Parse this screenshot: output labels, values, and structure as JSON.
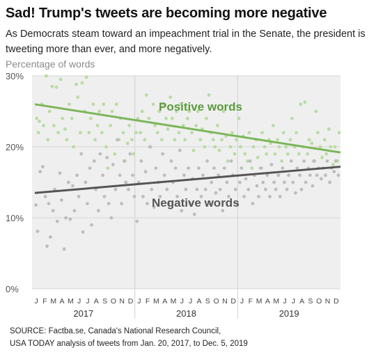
{
  "header": {
    "title": "Sad! Trump's tweets are becoming more negative",
    "subtitle": "As Democrats steam toward an impeachment trial in the Senate, the president is tweeting more than ever, and more negatively."
  },
  "footer": {
    "source_line1": "SOURCE: Factba.se, Canada's National Research Council,",
    "source_line2": "USA TODAY analysis of tweets from Jan. 20, 2017, to Dec. 5, 2019"
  },
  "colors": {
    "positive": "#7cb65a",
    "positive_label": "#5b9a3c",
    "positive_dot": "#b9dca2",
    "negative": "#555555",
    "negative_dot": "#bdbdbd",
    "plot_bg": "#efefef"
  },
  "chart_data": {
    "type": "scatter",
    "ylabel": "Percentage of words",
    "xlabel": "",
    "ylim": [
      0,
      30
    ],
    "yticks": [
      "0%",
      "10%",
      "20%",
      "30%"
    ],
    "grid": true,
    "month_labels": [
      "J",
      "F",
      "M",
      "A",
      "M",
      "J",
      "J",
      "A",
      "S",
      "O",
      "N",
      "D",
      "J",
      "F",
      "M",
      "A",
      "M",
      "J",
      "J",
      "A",
      "S",
      "O",
      "N",
      "D",
      "J",
      "F",
      "M",
      "A",
      "M",
      "J",
      "J",
      "A",
      "S",
      "O",
      "N",
      "D"
    ],
    "year_labels": [
      "2017",
      "2018",
      "2019"
    ],
    "annotations": [
      "Positive words",
      "Negative words"
    ],
    "x_range_months": [
      0,
      35.5
    ],
    "trend_lines": [
      {
        "name": "Positive words",
        "start": 26.0,
        "end": 19.2
      },
      {
        "name": "Negative words",
        "start": 13.5,
        "end": 17.2
      }
    ],
    "series": [
      {
        "name": "Positive words",
        "points": [
          [
            0.2,
            24
          ],
          [
            0.4,
            22
          ],
          [
            0.5,
            23.6
          ],
          [
            0.8,
            26
          ],
          [
            1.0,
            23
          ],
          [
            1.3,
            30
          ],
          [
            1.5,
            21
          ],
          [
            1.7,
            25
          ],
          [
            2.0,
            28.5
          ],
          [
            2.2,
            23
          ],
          [
            2.5,
            28.4
          ],
          [
            2.7,
            22
          ],
          [
            3.0,
            29.5
          ],
          [
            3.2,
            24
          ],
          [
            3.5,
            22.5
          ],
          [
            3.7,
            21
          ],
          [
            4.0,
            26
          ],
          [
            4.3,
            24
          ],
          [
            4.5,
            20
          ],
          [
            4.8,
            28.8
          ],
          [
            5.0,
            27
          ],
          [
            5.3,
            22
          ],
          [
            5.5,
            29
          ],
          [
            5.8,
            25
          ],
          [
            6.0,
            29.8
          ],
          [
            6.3,
            22
          ],
          [
            6.5,
            24
          ],
          [
            6.8,
            26
          ],
          [
            7.0,
            21
          ],
          [
            7.3,
            23
          ],
          [
            7.5,
            25
          ],
          [
            7.8,
            22
          ],
          [
            8.0,
            26
          ],
          [
            8.3,
            20
          ],
          [
            8.5,
            17
          ],
          [
            8.8,
            23
          ],
          [
            9.0,
            25
          ],
          [
            9.3,
            19
          ],
          [
            9.5,
            26
          ],
          [
            9.8,
            21
          ],
          [
            10.0,
            24
          ],
          [
            10.3,
            22
          ],
          [
            10.5,
            18
          ],
          [
            10.8,
            20.5
          ],
          [
            11.0,
            23
          ],
          [
            11.3,
            21
          ],
          [
            11.5,
            19
          ],
          [
            11.8,
            22
          ],
          [
            12.0,
            24
          ],
          [
            12.3,
            22
          ],
          [
            12.5,
            25
          ],
          [
            12.8,
            21
          ],
          [
            13.0,
            27.3
          ],
          [
            13.3,
            24
          ],
          [
            13.5,
            20
          ],
          [
            13.8,
            26
          ],
          [
            14.0,
            23
          ],
          [
            14.3,
            22
          ],
          [
            14.5,
            25
          ],
          [
            14.8,
            21
          ],
          [
            15.0,
            26
          ],
          [
            15.3,
            24
          ],
          [
            15.5,
            22.5
          ],
          [
            15.8,
            27
          ],
          [
            16.0,
            24
          ],
          [
            16.3,
            21
          ],
          [
            16.5,
            25
          ],
          [
            16.8,
            22
          ],
          [
            17.0,
            26
          ],
          [
            17.3,
            23
          ],
          [
            17.5,
            21
          ],
          [
            17.8,
            24
          ],
          [
            18.0,
            25
          ],
          [
            18.3,
            22
          ],
          [
            18.5,
            19.5
          ],
          [
            18.8,
            23
          ],
          [
            19.0,
            25
          ],
          [
            19.3,
            21
          ],
          [
            19.5,
            22.5
          ],
          [
            19.8,
            20
          ],
          [
            20.0,
            24
          ],
          [
            20.3,
            27.3
          ],
          [
            20.5,
            22
          ],
          [
            20.8,
            21
          ],
          [
            21.0,
            20
          ],
          [
            21.3,
            23
          ],
          [
            21.5,
            19.5
          ],
          [
            21.8,
            21
          ],
          [
            22.0,
            25
          ],
          [
            22.3,
            21.5
          ],
          [
            22.5,
            18
          ],
          [
            22.8,
            20
          ],
          [
            23.0,
            22
          ],
          [
            23.3,
            19
          ],
          [
            23.5,
            21
          ],
          [
            23.8,
            24
          ],
          [
            24.0,
            20
          ],
          [
            24.3,
            21.5
          ],
          [
            24.5,
            19
          ],
          [
            24.8,
            18
          ],
          [
            25.0,
            22
          ],
          [
            25.3,
            17
          ],
          [
            25.5,
            20
          ],
          [
            25.8,
            21
          ],
          [
            26.0,
            18.5
          ],
          [
            26.3,
            17
          ],
          [
            26.5,
            22
          ],
          [
            26.8,
            20
          ],
          [
            27.0,
            19
          ],
          [
            27.3,
            21
          ],
          [
            27.5,
            20.5
          ],
          [
            27.8,
            23
          ],
          [
            28.0,
            19
          ],
          [
            28.3,
            21
          ],
          [
            28.5,
            20
          ],
          [
            28.8,
            18
          ],
          [
            29.0,
            22
          ],
          [
            29.3,
            20
          ],
          [
            29.5,
            19
          ],
          [
            29.8,
            21
          ],
          [
            30.0,
            24
          ],
          [
            30.3,
            20
          ],
          [
            30.5,
            22
          ],
          [
            30.8,
            19
          ],
          [
            31.0,
            26
          ],
          [
            31.3,
            20
          ],
          [
            31.5,
            26.3
          ],
          [
            31.8,
            19
          ],
          [
            32.0,
            21
          ],
          [
            32.3,
            20.5
          ],
          [
            32.5,
            18
          ],
          [
            32.8,
            25
          ],
          [
            33.0,
            22
          ],
          [
            33.3,
            20
          ],
          [
            33.5,
            18.5
          ],
          [
            33.8,
            21
          ],
          [
            34.0,
            19
          ],
          [
            34.3,
            22.5
          ],
          [
            34.5,
            20
          ],
          [
            34.8,
            17.5
          ],
          [
            35.0,
            20
          ],
          [
            35.3,
            18
          ],
          [
            35.5,
            22
          ]
        ]
      },
      {
        "name": "Negative words",
        "points": [
          [
            0.1,
            11.8
          ],
          [
            0.3,
            8.1
          ],
          [
            0.6,
            16.5
          ],
          [
            0.9,
            17.2
          ],
          [
            1.2,
            13
          ],
          [
            1.4,
            6
          ],
          [
            1.6,
            12
          ],
          [
            1.8,
            7.3
          ],
          [
            2.1,
            11
          ],
          [
            2.3,
            14
          ],
          [
            2.6,
            9.5
          ],
          [
            2.9,
            16.3
          ],
          [
            3.1,
            12.5
          ],
          [
            3.4,
            5.6
          ],
          [
            3.6,
            10
          ],
          [
            3.9,
            15
          ],
          [
            4.1,
            9.8
          ],
          [
            4.4,
            14.5
          ],
          [
            4.6,
            11
          ],
          [
            4.9,
            16
          ],
          [
            5.1,
            13
          ],
          [
            5.4,
            19
          ],
          [
            5.6,
            8
          ],
          [
            5.9,
            15
          ],
          [
            6.1,
            12
          ],
          [
            6.4,
            17
          ],
          [
            6.6,
            9
          ],
          [
            6.9,
            18
          ],
          [
            7.1,
            14
          ],
          [
            7.4,
            11
          ],
          [
            7.6,
            19
          ],
          [
            7.9,
            16
          ],
          [
            8.1,
            13
          ],
          [
            8.4,
            18.5
          ],
          [
            8.6,
            12
          ],
          [
            8.9,
            10
          ],
          [
            9.1,
            17.5
          ],
          [
            9.4,
            14
          ],
          [
            9.6,
            21
          ],
          [
            9.9,
            16
          ],
          [
            10.1,
            12
          ],
          [
            10.4,
            18
          ],
          [
            10.6,
            15
          ],
          [
            10.9,
            14
          ],
          [
            11.1,
            19
          ],
          [
            11.4,
            16
          ],
          [
            11.6,
            13
          ],
          [
            11.9,
            9.5
          ],
          [
            12.1,
            15
          ],
          [
            12.4,
            18
          ],
          [
            12.6,
            13
          ],
          [
            12.9,
            16.5
          ],
          [
            13.1,
            12
          ],
          [
            13.4,
            20
          ],
          [
            13.6,
            14
          ],
          [
            13.9,
            11.5
          ],
          [
            14.1,
            17
          ],
          [
            14.4,
            15
          ],
          [
            14.6,
            13
          ],
          [
            14.9,
            19
          ],
          [
            15.1,
            16
          ],
          [
            15.4,
            14
          ],
          [
            15.6,
            12
          ],
          [
            15.9,
            18
          ],
          [
            16.1,
            15
          ],
          [
            16.4,
            17
          ],
          [
            16.6,
            13
          ],
          [
            16.9,
            19.5
          ],
          [
            17.1,
            11
          ],
          [
            17.4,
            16
          ],
          [
            17.6,
            14
          ],
          [
            17.9,
            17
          ],
          [
            18.1,
            12
          ],
          [
            18.4,
            15.5
          ],
          [
            18.6,
            10.5
          ],
          [
            18.9,
            14
          ],
          [
            19.1,
            17
          ],
          [
            19.4,
            13
          ],
          [
            19.6,
            16
          ],
          [
            19.9,
            14
          ],
          [
            20.1,
            18
          ],
          [
            20.4,
            12
          ],
          [
            20.6,
            15
          ],
          [
            20.9,
            17
          ],
          [
            21.1,
            13.5
          ],
          [
            21.4,
            16
          ],
          [
            21.6,
            14
          ],
          [
            21.9,
            11
          ],
          [
            22.1,
            17
          ],
          [
            22.4,
            15
          ],
          [
            22.6,
            13
          ],
          [
            22.9,
            18
          ],
          [
            23.1,
            16
          ],
          [
            23.4,
            14
          ],
          [
            23.6,
            12
          ],
          [
            23.9,
            15
          ],
          [
            24.1,
            17
          ],
          [
            24.4,
            13
          ],
          [
            24.6,
            15.5
          ],
          [
            24.9,
            14
          ],
          [
            25.1,
            18
          ],
          [
            25.4,
            12
          ],
          [
            25.6,
            16
          ],
          [
            25.9,
            14.5
          ],
          [
            26.1,
            13
          ],
          [
            26.4,
            17
          ],
          [
            26.6,
            15
          ],
          [
            26.9,
            14
          ],
          [
            27.1,
            16
          ],
          [
            27.4,
            13
          ],
          [
            27.6,
            17.5
          ],
          [
            27.9,
            15
          ],
          [
            28.1,
            14
          ],
          [
            28.4,
            16
          ],
          [
            28.6,
            13
          ],
          [
            28.9,
            17
          ],
          [
            29.1,
            15
          ],
          [
            29.4,
            14
          ],
          [
            29.6,
            16
          ],
          [
            29.9,
            18
          ],
          [
            30.1,
            15
          ],
          [
            30.4,
            13.5
          ],
          [
            30.6,
            17
          ],
          [
            30.9,
            16
          ],
          [
            31.1,
            14
          ],
          [
            31.4,
            18
          ],
          [
            31.6,
            15
          ],
          [
            31.9,
            17
          ],
          [
            32.1,
            16
          ],
          [
            32.4,
            14.5
          ],
          [
            32.6,
            18
          ],
          [
            32.9,
            16
          ],
          [
            33.1,
            17
          ],
          [
            33.4,
            15.5
          ],
          [
            33.6,
            17
          ],
          [
            33.9,
            16
          ],
          [
            34.1,
            18
          ],
          [
            34.4,
            15
          ],
          [
            34.6,
            17
          ],
          [
            34.9,
            16.5
          ],
          [
            35.1,
            18
          ],
          [
            35.4,
            16
          ]
        ]
      }
    ]
  }
}
